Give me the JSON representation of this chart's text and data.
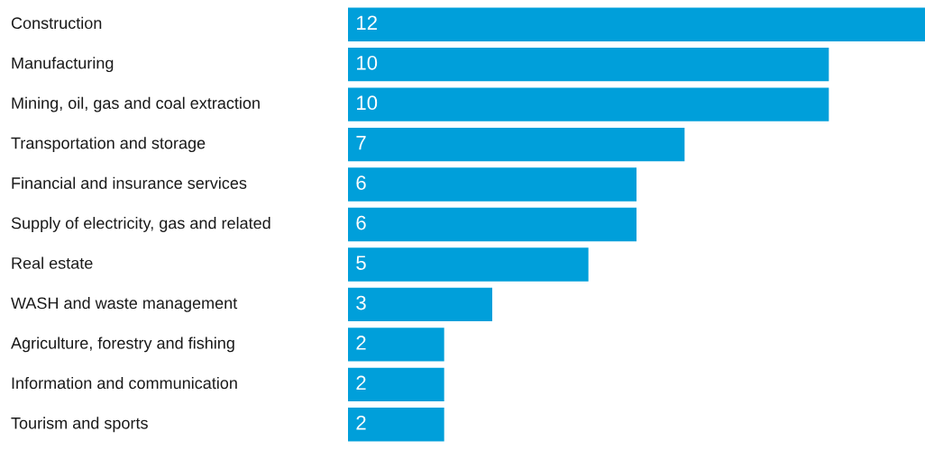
{
  "chart_data": {
    "type": "bar",
    "orientation": "horizontal",
    "categories": [
      "Construction",
      "Manufacturing",
      "Mining, oil, gas and coal extraction",
      "Transportation and storage",
      "Financial and insurance services",
      "Supply of electricity, gas and related",
      "Real estate",
      "WASH and waste management",
      "Agriculture, forestry and fishing",
      "Information and communication",
      "Tourism and sports"
    ],
    "values": [
      12,
      10,
      10,
      7,
      6,
      6,
      5,
      3,
      2,
      2,
      2
    ],
    "color": "#009fda",
    "data_labels": true,
    "tick_labels": "y"
  }
}
